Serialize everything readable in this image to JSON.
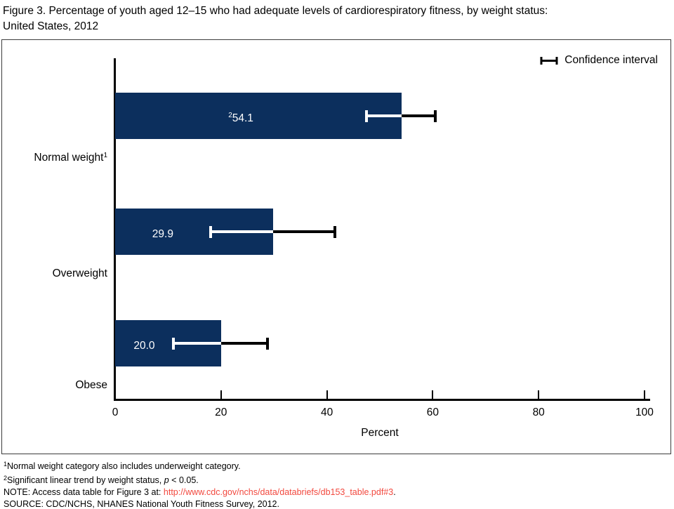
{
  "title": {
    "line1": "Figure 3. Percentage of youth aged 12–15 who had adequate levels of cardiorespiratory fitness, by weight status:",
    "line2": "United States, 2012"
  },
  "legend": {
    "label": "Confidence interval",
    "icon": "error-bar-icon"
  },
  "chart_data": {
    "type": "bar",
    "orientation": "horizontal",
    "title": "Figure 3. Percentage of youth aged 12–15 who had adequate levels of cardiorespiratory fitness, by weight status: United States, 2012",
    "categories": [
      "Normal weight",
      "Overweight",
      "Obese"
    ],
    "category_superscripts": [
      "1",
      "",
      ""
    ],
    "values": [
      54.1,
      29.9,
      20.0
    ],
    "value_labels": [
      "54.1",
      "29.9",
      "20.0"
    ],
    "value_label_superscripts": [
      "2",
      "",
      ""
    ],
    "confidence_intervals": [
      [
        47.5,
        60.5
      ],
      [
        18.0,
        41.5
      ],
      [
        11.0,
        28.8
      ]
    ],
    "xlabel": "Percent",
    "xlim": [
      0,
      100
    ],
    "xticks": [
      0,
      20,
      40,
      60,
      80,
      100
    ],
    "grid": false,
    "legend_label": "Confidence interval",
    "legend_position": "top-right",
    "bar_color": "#0c2f5d",
    "ci_color_inside_bar": "#ffffff",
    "ci_color_outside_bar": "#000000"
  },
  "footnotes": {
    "fn1": {
      "sup": "1",
      "text": "Normal weight category also includes underweight category."
    },
    "fn2": {
      "sup": "2",
      "pre": "Significant linear trend by weight status, ",
      "italic": "p",
      "post": " < 0.05."
    },
    "note": {
      "prefix": "NOTE: Access data table for Figure 3 at: ",
      "url": "http://www.cdc.gov/nchs/data/databriefs/db153_table.pdf#3",
      "suffix": "."
    },
    "source": "SOURCE: CDC/NCHS, NHANES National Youth Fitness Survey, 2012."
  },
  "colors": {
    "bar": "#0c2f5d",
    "link": "#f2493f",
    "axis": "#000000",
    "box_border": "#3c3c3c"
  }
}
